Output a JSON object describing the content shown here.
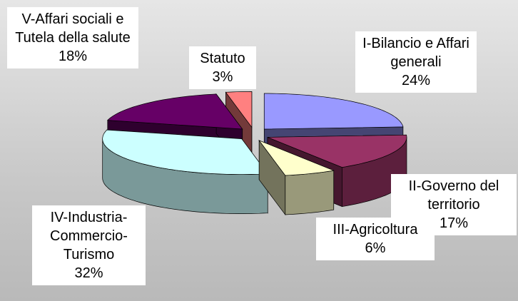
{
  "chart_data": {
    "type": "pie3d",
    "categories": [
      "I-Bilancio e Affari generali",
      "II-Governo del territorio",
      "III-Agricoltura",
      "IV-Industria-Commercio-Turismo",
      "V-Affari sociali e Tutela della salute",
      "Statuto"
    ],
    "values": [
      24,
      17,
      6,
      32,
      18,
      3
    ],
    "value_labels": [
      "24%",
      "17%",
      "6%",
      "32%",
      "18%",
      "3%"
    ],
    "colors": [
      "#9999ff",
      "#993366",
      "#ffffcc",
      "#ccffff",
      "#660066",
      "#ff8080"
    ]
  }
}
